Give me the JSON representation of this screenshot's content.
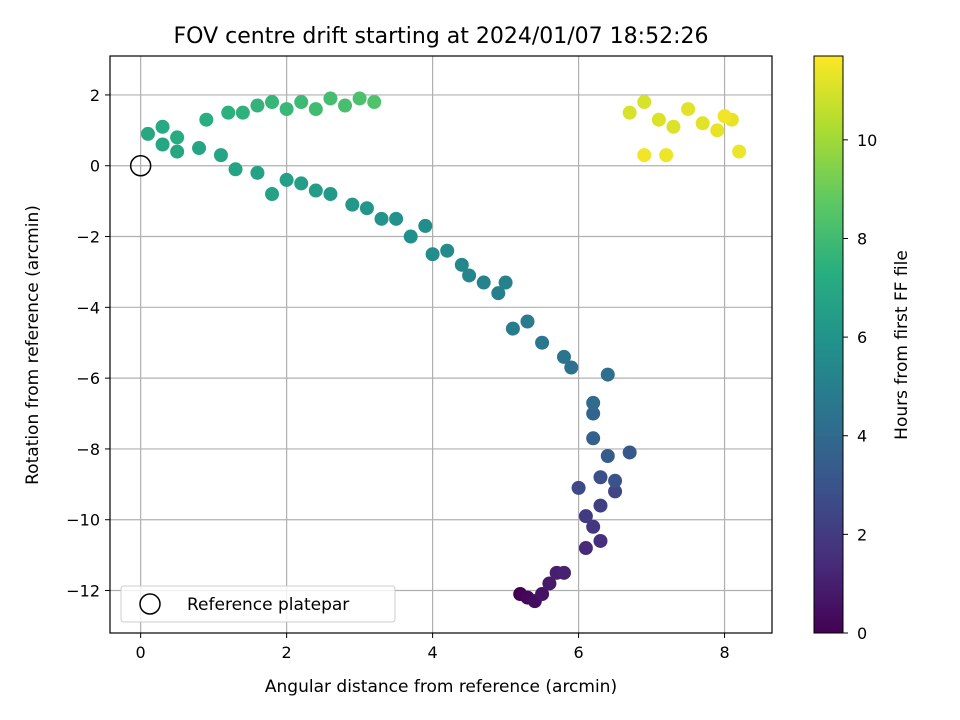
{
  "chart_data": {
    "type": "scatter",
    "title": "FOV centre drift starting at 2024/01/07 18:52:26",
    "xlabel": "Angular distance from reference (arcmin)",
    "ylabel": "Rotation from reference (arcmin)",
    "xlim": [
      -0.42,
      8.65
    ],
    "ylim": [
      -13.2,
      3.1
    ],
    "xticks": [
      0,
      2,
      4,
      6,
      8
    ],
    "yticks": [
      2,
      0,
      -2,
      -4,
      -6,
      -8,
      -10,
      -12
    ],
    "grid": true,
    "colormap": "viridis",
    "colorbar": {
      "label": "Hours from first FF file",
      "range": [
        0,
        11.7
      ],
      "ticks": [
        0,
        2,
        4,
        6,
        8,
        10
      ]
    },
    "legend": {
      "position": "lower-left",
      "entries": [
        "Reference platepar"
      ]
    },
    "reference_point": {
      "x": 0,
      "y": 0,
      "marker": "open-circle"
    },
    "track": [
      [
        5.2,
        -12.1,
        0.0
      ],
      [
        5.3,
        -12.2,
        0.2
      ],
      [
        5.4,
        -12.3,
        0.4
      ],
      [
        5.5,
        -12.1,
        0.6
      ],
      [
        5.6,
        -11.8,
        0.8
      ],
      [
        5.7,
        -11.5,
        1.0
      ],
      [
        5.8,
        -11.5,
        1.1
      ],
      [
        6.1,
        -10.8,
        1.4
      ],
      [
        6.3,
        -10.6,
        1.6
      ],
      [
        6.2,
        -10.2,
        1.8
      ],
      [
        6.1,
        -9.9,
        2.0
      ],
      [
        6.3,
        -9.6,
        2.2
      ],
      [
        6.5,
        -9.2,
        2.4
      ],
      [
        6.0,
        -9.1,
        2.6
      ],
      [
        6.3,
        -8.8,
        2.8
      ],
      [
        6.5,
        -8.9,
        3.0
      ],
      [
        6.7,
        -8.1,
        3.2
      ],
      [
        6.4,
        -8.2,
        3.4
      ],
      [
        6.2,
        -7.7,
        3.6
      ],
      [
        6.2,
        -7.0,
        3.8
      ],
      [
        6.2,
        -6.7,
        4.0
      ],
      [
        6.4,
        -5.9,
        4.2
      ],
      [
        5.9,
        -5.7,
        4.4
      ],
      [
        5.8,
        -5.4,
        4.5
      ],
      [
        5.5,
        -5.0,
        4.6
      ],
      [
        5.3,
        -4.4,
        4.8
      ],
      [
        5.1,
        -4.6,
        4.9
      ],
      [
        4.9,
        -3.6,
        5.0
      ],
      [
        5.0,
        -3.3,
        5.1
      ],
      [
        4.7,
        -3.3,
        5.2
      ],
      [
        4.5,
        -3.1,
        5.3
      ],
      [
        4.4,
        -2.8,
        5.4
      ],
      [
        4.2,
        -2.4,
        5.5
      ],
      [
        4.0,
        -2.5,
        5.6
      ],
      [
        3.9,
        -1.7,
        5.7
      ],
      [
        3.7,
        -2.0,
        5.8
      ],
      [
        3.5,
        -1.5,
        5.9
      ],
      [
        3.3,
        -1.5,
        6.0
      ],
      [
        3.1,
        -1.2,
        6.1
      ],
      [
        2.9,
        -1.1,
        6.2
      ],
      [
        2.6,
        -0.8,
        6.3
      ],
      [
        2.4,
        -0.7,
        6.4
      ],
      [
        2.2,
        -0.5,
        6.5
      ],
      [
        2.0,
        -0.4,
        6.6
      ],
      [
        1.8,
        -0.8,
        6.65
      ],
      [
        1.6,
        -0.2,
        6.7
      ],
      [
        1.3,
        -0.1,
        6.75
      ],
      [
        1.1,
        0.3,
        6.8
      ],
      [
        0.8,
        0.5,
        6.85
      ],
      [
        0.5,
        0.4,
        6.9
      ],
      [
        0.3,
        0.6,
        6.95
      ],
      [
        0.1,
        0.9,
        7.0
      ],
      [
        0.3,
        1.1,
        7.1
      ],
      [
        0.5,
        0.8,
        7.2
      ],
      [
        0.9,
        1.3,
        7.3
      ],
      [
        1.2,
        1.5,
        7.4
      ],
      [
        1.4,
        1.5,
        7.5
      ],
      [
        1.6,
        1.7,
        7.6
      ],
      [
        1.8,
        1.8,
        7.7
      ],
      [
        2.0,
        1.6,
        7.8
      ],
      [
        2.2,
        1.8,
        7.9
      ],
      [
        2.4,
        1.6,
        8.0
      ],
      [
        2.6,
        1.9,
        8.1
      ],
      [
        2.8,
        1.7,
        8.2
      ],
      [
        3.0,
        1.9,
        8.3
      ],
      [
        3.2,
        1.8,
        8.4
      ],
      [
        6.7,
        1.5,
        11.0
      ],
      [
        6.9,
        1.8,
        11.0
      ],
      [
        7.1,
        1.3,
        11.1
      ],
      [
        7.3,
        1.1,
        11.1
      ],
      [
        7.5,
        1.6,
        11.2
      ],
      [
        7.7,
        1.2,
        11.2
      ],
      [
        7.9,
        1.0,
        11.3
      ],
      [
        8.1,
        1.3,
        11.3
      ],
      [
        8.2,
        0.4,
        11.4
      ],
      [
        7.2,
        0.3,
        11.4
      ],
      [
        6.9,
        0.3,
        11.5
      ],
      [
        8.0,
        1.4,
        11.5
      ]
    ]
  }
}
